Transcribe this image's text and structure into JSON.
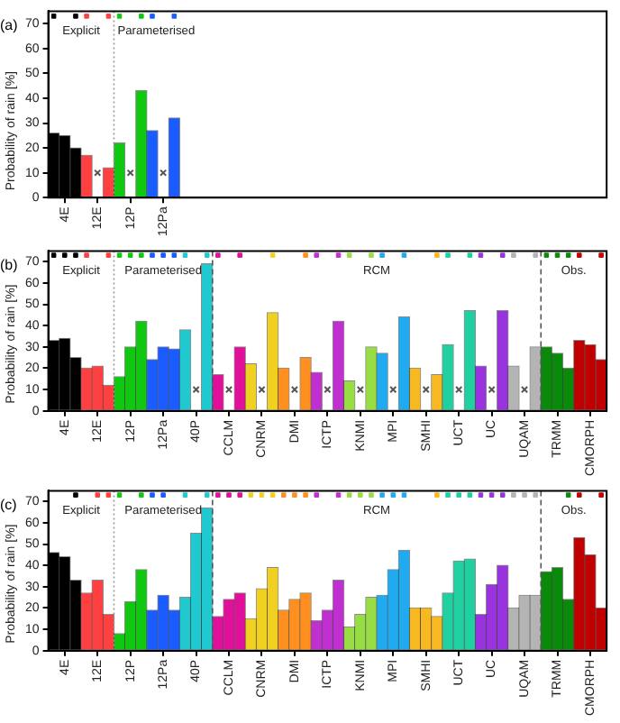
{
  "chart_data": [
    {
      "type": "bar",
      "title": "(a)",
      "ylabel": "Probability of rain [%]",
      "ylim": [
        0,
        75
      ],
      "yticks": [
        0,
        10,
        20,
        30,
        40,
        50,
        60,
        70
      ],
      "categories": [
        null,
        "4E",
        null,
        null,
        "12E",
        null,
        null,
        "12P",
        null,
        null,
        "12Pa",
        null,
        null,
        null,
        null,
        null,
        null,
        null,
        null,
        null,
        null,
        null,
        null,
        null,
        null,
        null,
        null,
        null,
        null,
        null,
        null,
        null,
        null,
        null,
        null,
        null,
        null,
        null,
        null,
        null,
        null,
        null,
        null,
        null,
        null,
        null,
        null,
        null,
        null,
        null,
        null
      ],
      "annotations": [
        "Explicit",
        "Parameterised"
      ],
      "series": [
        {
          "type": "bar",
          "colors": [
            "#000000",
            "#000000",
            "#000000",
            "#ff4040",
            "#ff4040",
            "#ff4040",
            "#10c810",
            "#10c810",
            "#10c810",
            "#1a5cff",
            "#1a5cff",
            "#1a5cff",
            "#20c8d0",
            "#20c8d0",
            "#20c8d0",
            "#e0109a",
            "#e0109a",
            "#e0109a",
            "#f0d020",
            "#f0d020",
            "#f0d020",
            "#ff9020",
            "#ff9020",
            "#ff9020",
            "#c030d0",
            "#c030d0",
            "#c030d0",
            "#99dd44",
            "#99dd44",
            "#99dd44",
            "#20aaf0",
            "#20aaf0",
            "#20aaf0",
            "#f8b820",
            "#f8b820",
            "#f8b820",
            "#20d0a0",
            "#20d0a0",
            "#20d0a0",
            "#9933dd",
            "#9933dd",
            "#9933dd",
            "#b4b4b4",
            "#b4b4b4",
            "#b4b4b4",
            "#0a8a0a",
            "#0a8a0a",
            "#0a8a0a",
            "#c00000",
            "#c00000",
            "#c00000"
          ],
          "values": [
            26,
            25,
            20,
            17,
            null,
            12,
            22,
            null,
            43,
            27,
            null,
            32,
            null,
            null,
            null,
            null,
            null,
            null,
            null,
            null,
            null,
            null,
            null,
            null,
            null,
            null,
            null,
            null,
            null,
            null,
            null,
            null,
            null,
            null,
            null,
            null,
            null,
            null,
            null,
            null,
            null,
            null,
            null,
            null,
            null,
            null,
            null,
            null,
            null,
            null,
            null
          ]
        },
        {
          "type": "scatter",
          "marker": "square",
          "colors": [
            "#000000",
            "#000000",
            "#000000",
            "#ff4040",
            "#ff4040",
            "#ff4040",
            "#10c810",
            "#10c810",
            "#10c810",
            "#1a5cff",
            "#1a5cff",
            "#1a5cff",
            "#20c8d0",
            "#20c8d0",
            "#20c8d0",
            "#e0109a",
            "#e0109a",
            "#e0109a",
            "#f0d020",
            "#f0d020",
            "#f0d020",
            "#ff9020",
            "#ff9020",
            "#ff9020",
            "#c030d0",
            "#c030d0",
            "#c030d0",
            "#99dd44",
            "#99dd44",
            "#99dd44",
            "#20aaf0",
            "#20aaf0",
            "#20aaf0",
            "#f8b820",
            "#f8b820",
            "#f8b820",
            "#20d0a0",
            "#20d0a0",
            "#20d0a0",
            "#9933dd",
            "#9933dd",
            "#9933dd",
            "#b4b4b4",
            "#b4b4b4",
            "#b4b4b4",
            "#0a8a0a",
            "#0a8a0a",
            "#0a8a0a",
            "#c00000",
            "#c00000",
            "#c00000"
          ],
          "values": [
            73,
            null,
            73,
            73,
            null,
            73,
            73,
            null,
            73,
            73,
            null,
            73,
            null,
            null,
            null,
            null,
            null,
            null,
            null,
            null,
            null,
            null,
            null,
            null,
            null,
            null,
            null,
            null,
            null,
            null,
            null,
            null,
            null,
            null,
            null,
            null,
            null,
            null,
            null,
            null,
            null,
            null,
            null,
            null,
            null,
            null,
            null,
            null,
            null,
            null,
            null
          ]
        },
        {
          "type": "scatter",
          "marker": "cross",
          "color": "#555555",
          "values": [
            null,
            null,
            null,
            null,
            10,
            null,
            null,
            10,
            null,
            null,
            10,
            null,
            null,
            null,
            null,
            null,
            null,
            null,
            null,
            null,
            null,
            null,
            null,
            null,
            null,
            null,
            null,
            null,
            null,
            null,
            null,
            null,
            null,
            null,
            null,
            null,
            null,
            null,
            null,
            null,
            null,
            null,
            null,
            null,
            null,
            null,
            null,
            null,
            null,
            null,
            null
          ]
        }
      ]
    },
    {
      "type": "bar",
      "title": "(b)",
      "ylabel": "Probability of rain [%]",
      "ylim": [
        0,
        75
      ],
      "yticks": [
        0,
        10,
        20,
        30,
        40,
        50,
        60,
        70
      ],
      "categories": [
        null,
        "4E",
        null,
        null,
        "12E",
        null,
        null,
        "12P",
        null,
        null,
        "12Pa",
        null,
        null,
        "40P",
        null,
        null,
        "CCLM",
        null,
        null,
        "CNRM",
        null,
        null,
        "DMI",
        null,
        null,
        "ICTP",
        null,
        null,
        "KNMI",
        null,
        null,
        "MPI",
        null,
        null,
        "SMHI",
        null,
        null,
        "UCT",
        null,
        null,
        "UC",
        null,
        null,
        "UQAM",
        null,
        null,
        "TRMM",
        null,
        null,
        "CMORPH",
        null
      ],
      "annotations": [
        "Explicit",
        "Parameterised",
        "RCM",
        "Obs."
      ],
      "series": [
        {
          "type": "bar",
          "colors": [
            "#000000",
            "#000000",
            "#000000",
            "#ff4040",
            "#ff4040",
            "#ff4040",
            "#10c810",
            "#10c810",
            "#10c810",
            "#1a5cff",
            "#1a5cff",
            "#1a5cff",
            "#20c8d0",
            "#20c8d0",
            "#20c8d0",
            "#e0109a",
            "#e0109a",
            "#e0109a",
            "#f0d020",
            "#f0d020",
            "#f0d020",
            "#ff9020",
            "#ff9020",
            "#ff9020",
            "#c030d0",
            "#c030d0",
            "#c030d0",
            "#99dd44",
            "#99dd44",
            "#99dd44",
            "#20aaf0",
            "#20aaf0",
            "#20aaf0",
            "#f8b820",
            "#f8b820",
            "#f8b820",
            "#20d0a0",
            "#20d0a0",
            "#20d0a0",
            "#9933dd",
            "#9933dd",
            "#9933dd",
            "#b4b4b4",
            "#b4b4b4",
            "#b4b4b4",
            "#0a8a0a",
            "#0a8a0a",
            "#0a8a0a",
            "#c00000",
            "#c00000",
            "#c00000"
          ],
          "values": [
            33,
            34,
            25,
            20,
            21,
            12,
            16,
            30,
            42,
            24,
            30,
            29,
            38,
            null,
            69,
            17,
            null,
            30,
            22,
            null,
            46,
            20,
            null,
            25,
            18,
            null,
            42,
            14,
            null,
            30,
            27,
            null,
            44,
            20,
            null,
            17,
            31,
            null,
            47,
            21,
            null,
            47,
            21,
            null,
            30,
            30,
            27,
            20,
            33,
            31,
            24
          ]
        },
        {
          "type": "scatter",
          "marker": "square",
          "colors": [
            "#000000",
            "#000000",
            "#000000",
            "#ff4040",
            "#ff4040",
            "#ff4040",
            "#10c810",
            "#10c810",
            "#10c810",
            "#1a5cff",
            "#1a5cff",
            "#1a5cff",
            "#20c8d0",
            "#20c8d0",
            "#20c8d0",
            "#e0109a",
            "#e0109a",
            "#e0109a",
            "#f0d020",
            "#f0d020",
            "#f0d020",
            "#ff9020",
            "#ff9020",
            "#ff9020",
            "#c030d0",
            "#c030d0",
            "#c030d0",
            "#99dd44",
            "#99dd44",
            "#99dd44",
            "#20aaf0",
            "#20aaf0",
            "#20aaf0",
            "#f8b820",
            "#f8b820",
            "#f8b820",
            "#20d0a0",
            "#20d0a0",
            "#20d0a0",
            "#9933dd",
            "#9933dd",
            "#9933dd",
            "#b4b4b4",
            "#b4b4b4",
            "#b4b4b4",
            "#0a8a0a",
            "#0a8a0a",
            "#0a8a0a",
            "#c00000",
            "#c00000",
            "#c00000"
          ],
          "values": [
            73,
            73,
            73,
            73,
            null,
            73,
            73,
            73,
            73,
            73,
            73,
            73,
            73,
            null,
            73,
            73,
            null,
            73,
            null,
            null,
            73,
            null,
            null,
            73,
            73,
            null,
            73,
            73,
            null,
            73,
            73,
            null,
            73,
            null,
            null,
            73,
            73,
            null,
            73,
            73,
            null,
            73,
            73,
            null,
            73,
            73,
            73,
            73,
            73,
            null,
            73
          ]
        },
        {
          "type": "scatter",
          "marker": "cross",
          "color": "#555555",
          "values": [
            null,
            null,
            null,
            null,
            null,
            null,
            null,
            null,
            null,
            null,
            null,
            null,
            null,
            10,
            null,
            null,
            10,
            null,
            null,
            10,
            null,
            null,
            10,
            null,
            null,
            10,
            null,
            null,
            10,
            null,
            null,
            10,
            null,
            null,
            10,
            null,
            null,
            10,
            null,
            null,
            10,
            null,
            null,
            10,
            null,
            null,
            null,
            null,
            null,
            null,
            null
          ]
        }
      ]
    },
    {
      "type": "bar",
      "title": "(c)",
      "ylabel": "Probability of rain [%]",
      "ylim": [
        0,
        75
      ],
      "yticks": [
        0,
        10,
        20,
        30,
        40,
        50,
        60,
        70
      ],
      "categories": [
        null,
        "4E",
        null,
        null,
        "12E",
        null,
        null,
        "12P",
        null,
        null,
        "12Pa",
        null,
        null,
        "40P",
        null,
        null,
        "CCLM",
        null,
        null,
        "CNRM",
        null,
        null,
        "DMI",
        null,
        null,
        "ICTP",
        null,
        null,
        "KNMI",
        null,
        null,
        "MPI",
        null,
        null,
        "SMHI",
        null,
        null,
        "UCT",
        null,
        null,
        "UC",
        null,
        null,
        "UQAM",
        null,
        null,
        "TRMM",
        null,
        null,
        "CMORPH",
        null
      ],
      "annotations": [
        "Explicit",
        "Parameterised",
        "RCM",
        "Obs."
      ],
      "series": [
        {
          "type": "bar",
          "colors": [
            "#000000",
            "#000000",
            "#000000",
            "#ff4040",
            "#ff4040",
            "#ff4040",
            "#10c810",
            "#10c810",
            "#10c810",
            "#1a5cff",
            "#1a5cff",
            "#1a5cff",
            "#20c8d0",
            "#20c8d0",
            "#20c8d0",
            "#e0109a",
            "#e0109a",
            "#e0109a",
            "#f0d020",
            "#f0d020",
            "#f0d020",
            "#ff9020",
            "#ff9020",
            "#ff9020",
            "#c030d0",
            "#c030d0",
            "#c030d0",
            "#99dd44",
            "#99dd44",
            "#99dd44",
            "#20aaf0",
            "#20aaf0",
            "#20aaf0",
            "#f8b820",
            "#f8b820",
            "#f8b820",
            "#20d0a0",
            "#20d0a0",
            "#20d0a0",
            "#9933dd",
            "#9933dd",
            "#9933dd",
            "#b4b4b4",
            "#b4b4b4",
            "#b4b4b4",
            "#0a8a0a",
            "#0a8a0a",
            "#0a8a0a",
            "#c00000",
            "#c00000",
            "#c00000"
          ],
          "values": [
            46,
            44,
            33,
            27,
            33,
            17,
            8,
            23,
            38,
            19,
            26,
            19,
            25,
            55,
            67,
            16,
            24,
            27,
            15,
            29,
            39,
            19,
            24,
            27,
            14,
            19,
            33,
            11,
            17,
            25,
            26,
            38,
            47,
            20,
            20,
            16,
            27,
            42,
            43,
            17,
            31,
            40,
            20,
            26,
            26,
            37,
            39,
            24,
            53,
            45,
            20
          ]
        },
        {
          "type": "scatter",
          "marker": "square",
          "colors": [
            "#000000",
            "#000000",
            "#000000",
            "#ff4040",
            "#ff4040",
            "#ff4040",
            "#10c810",
            "#10c810",
            "#10c810",
            "#1a5cff",
            "#1a5cff",
            "#1a5cff",
            "#20c8d0",
            "#20c8d0",
            "#20c8d0",
            "#e0109a",
            "#e0109a",
            "#e0109a",
            "#f0d020",
            "#f0d020",
            "#f0d020",
            "#ff9020",
            "#ff9020",
            "#ff9020",
            "#c030d0",
            "#c030d0",
            "#c030d0",
            "#99dd44",
            "#99dd44",
            "#99dd44",
            "#20aaf0",
            "#20aaf0",
            "#20aaf0",
            "#f8b820",
            "#f8b820",
            "#f8b820",
            "#20d0a0",
            "#20d0a0",
            "#20d0a0",
            "#9933dd",
            "#9933dd",
            "#9933dd",
            "#b4b4b4",
            "#b4b4b4",
            "#b4b4b4",
            "#0a8a0a",
            "#0a8a0a",
            "#0a8a0a",
            "#c00000",
            "#c00000",
            "#c00000"
          ],
          "values": [
            null,
            null,
            73,
            null,
            73,
            73,
            73,
            null,
            73,
            73,
            73,
            null,
            73,
            null,
            73,
            73,
            73,
            73,
            73,
            73,
            73,
            73,
            73,
            73,
            73,
            null,
            73,
            73,
            73,
            73,
            73,
            73,
            73,
            null,
            null,
            73,
            73,
            73,
            73,
            73,
            73,
            73,
            73,
            73,
            73,
            null,
            null,
            73,
            73,
            null,
            73
          ]
        }
      ]
    }
  ]
}
